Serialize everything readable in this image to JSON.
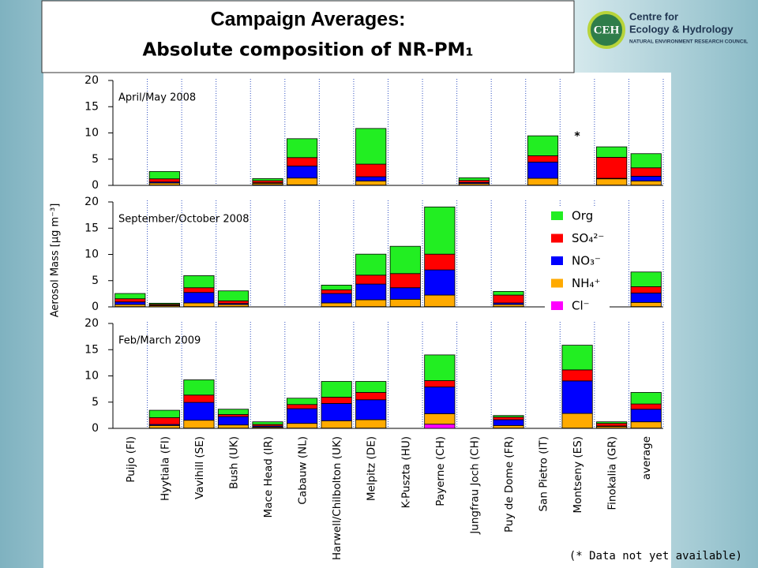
{
  "logo": {
    "mark": "CEH",
    "line1": "Centre for",
    "line2": "Ecology & Hydrology",
    "line3": "NATURAL ENVIRONMENT RESEARCH COUNCIL"
  },
  "note": "(* Data not yet available)",
  "chart_data": {
    "type": "bar",
    "stacked": true,
    "title": "Campaign Averages:",
    "subtitle": "Absolute composition of NR-PM₁",
    "y_label": "Aerosol Mass [μg m⁻³]",
    "categories": [
      "Puijo (FI)",
      "Hyytiala (FI)",
      "Vavihill (SE)",
      "Bush (UK)",
      "Mace Head (IR)",
      "Cabauw (NL)",
      "Harwell/Chilbolton (UK)",
      "Melpitz (DE)",
      "K-Puszta (HU)",
      "Payerne (CH)",
      "Jungfrau Joch (CH)",
      "Puy de Dome (FR)",
      "San Pietro (IT)",
      "Montseny (ES)",
      "Finokalia (GR)",
      "average"
    ],
    "series": [
      {
        "name": "Cl⁻",
        "color": "#ff00ff"
      },
      {
        "name": "NH₄⁺",
        "color": "#ffaa00"
      },
      {
        "name": "NO₃⁻",
        "color": "#0000ff"
      },
      {
        "name": "SO₄²⁻",
        "color": "#ff0000"
      },
      {
        "name": "Org",
        "color": "#22ee22"
      }
    ],
    "panels": [
      {
        "label": "April/May 2008",
        "ylim": [
          0,
          20
        ],
        "yticks": [
          0,
          5,
          10,
          15,
          20
        ],
        "annotations": [
          {
            "text": "*",
            "x": "Montseny (ES)",
            "y": 9.3
          }
        ],
        "series": [
          {
            "values": [
              null,
              0.05,
              null,
              null,
              0.1,
              0.1,
              null,
              0.05,
              null,
              null,
              0.05,
              null,
              0.05,
              null,
              0.05,
              0.05
            ]
          },
          {
            "values": [
              null,
              0.4,
              null,
              null,
              0.3,
              1.3,
              null,
              0.8,
              null,
              null,
              0.3,
              null,
              1.3,
              null,
              1.2,
              0.8
            ]
          },
          {
            "values": [
              null,
              0.2,
              null,
              null,
              0.1,
              2.3,
              null,
              0.8,
              null,
              null,
              0.2,
              null,
              3.1,
              null,
              0.1,
              0.9
            ]
          },
          {
            "values": [
              null,
              0.6,
              null,
              null,
              0.4,
              1.6,
              null,
              2.4,
              null,
              null,
              0.4,
              null,
              1.2,
              null,
              4.0,
              1.6
            ]
          },
          {
            "values": [
              null,
              1.4,
              null,
              null,
              0.4,
              3.6,
              null,
              6.8,
              null,
              null,
              0.5,
              null,
              3.8,
              null,
              2.0,
              2.7
            ]
          }
        ]
      },
      {
        "label": "September/October 2008",
        "ylim": [
          0,
          20
        ],
        "yticks": [
          0,
          5,
          10,
          15,
          20
        ],
        "legend": true,
        "series": [
          {
            "values": [
              0.05,
              0,
              0.05,
              0.05,
              null,
              null,
              0.05,
              0.05,
              0.05,
              0.05,
              null,
              0.05,
              null,
              null,
              null,
              0.05
            ]
          },
          {
            "values": [
              0.4,
              0.2,
              0.7,
              0.4,
              null,
              null,
              0.7,
              1.3,
              1.4,
              2.2,
              null,
              0.4,
              null,
              null,
              null,
              0.8
            ]
          },
          {
            "values": [
              0.5,
              0.1,
              2.0,
              0.2,
              null,
              null,
              1.8,
              3.0,
              2.2,
              4.8,
              null,
              0.3,
              null,
              null,
              null,
              1.8
            ]
          },
          {
            "values": [
              0.6,
              0.2,
              0.9,
              0.5,
              null,
              null,
              0.7,
              1.7,
              2.7,
              3.0,
              null,
              1.5,
              null,
              null,
              null,
              1.2
            ]
          },
          {
            "values": [
              1.0,
              0.2,
              2.3,
              1.9,
              null,
              null,
              0.9,
              4.0,
              5.2,
              9.0,
              null,
              0.7,
              null,
              null,
              null,
              2.8
            ]
          }
        ]
      },
      {
        "label": "Feb/March 2009",
        "ylim": [
          0,
          20
        ],
        "yticks": [
          0,
          5,
          10,
          15,
          20
        ],
        "category_labels": true,
        "series": [
          {
            "values": [
              null,
              0.05,
              0.05,
              0.05,
              0.05,
              0.05,
              0.05,
              0.05,
              null,
              0.8,
              null,
              0.05,
              null,
              0.05,
              0.05,
              0.05
            ]
          },
          {
            "values": [
              null,
              0.5,
              1.5,
              0.6,
              0.2,
              0.9,
              1.4,
              1.6,
              null,
              2.0,
              null,
              0.5,
              null,
              2.8,
              0.3,
              1.2
            ]
          },
          {
            "values": [
              null,
              0.2,
              3.4,
              1.6,
              0.2,
              2.8,
              3.3,
              3.8,
              null,
              5.1,
              null,
              1.1,
              null,
              6.2,
              0.1,
              2.4
            ]
          },
          {
            "values": [
              null,
              1.3,
              1.4,
              0.4,
              0.3,
              0.8,
              1.2,
              1.4,
              null,
              1.2,
              null,
              0.5,
              null,
              2.1,
              0.5,
              1.0
            ]
          },
          {
            "values": [
              null,
              1.4,
              2.9,
              1.0,
              0.5,
              1.2,
              3.0,
              2.1,
              null,
              4.9,
              null,
              0.3,
              null,
              4.7,
              0.3,
              2.2
            ]
          }
        ]
      }
    ]
  }
}
